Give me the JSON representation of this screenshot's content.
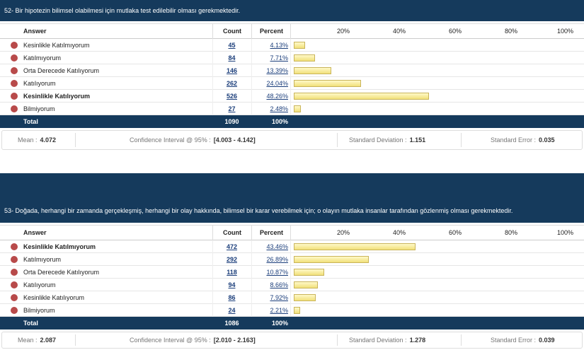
{
  "questions": [
    {
      "title": "52- Bir hipotezin bilimsel olabilmesi için mutlaka test edilebilir olması gerekmektedir.",
      "columns": [
        "Answer",
        "Count",
        "Percent"
      ],
      "scale": {
        "range": [
          0,
          100
        ],
        "ticks": [
          {
            "value": 20,
            "label": "20%"
          },
          {
            "value": 40,
            "label": "40%"
          },
          {
            "value": 60,
            "label": "60%"
          },
          {
            "value": 80,
            "label": "80%"
          },
          {
            "value": 100,
            "label": "100%"
          }
        ]
      },
      "rows": [
        {
          "answer": "Kesinlikle Katılmıyorum",
          "count": 45,
          "percent": 4.13,
          "percent_label": "4.13%"
        },
        {
          "answer": "Katılmıyorum",
          "count": 84,
          "percent": 7.71,
          "percent_label": "7.71%"
        },
        {
          "answer": "Orta Derecede Katılıyorum",
          "count": 146,
          "percent": 13.39,
          "percent_label": "13.39%"
        },
        {
          "answer": "Katılıyorum",
          "count": 262,
          "percent": 24.04,
          "percent_label": "24.04%"
        },
        {
          "answer": "Kesinlikle Katılıyorum",
          "count": 526,
          "percent": 48.26,
          "percent_label": "48.26%",
          "bold": true
        },
        {
          "answer": "Bilmiyorum",
          "count": 27,
          "percent": 2.48,
          "percent_label": "2.48%"
        }
      ],
      "total": {
        "label": "Total",
        "count": 1090,
        "percent": "100%"
      },
      "stats": [
        {
          "label": "Mean :",
          "value": "4.072"
        },
        {
          "label": "Confidence Interval @ 95% :",
          "value": "[4.003 - 4.142]"
        },
        {
          "label": "Standard Deviation :",
          "value": "1.151"
        },
        {
          "label": "Standard Error :",
          "value": "0.035"
        }
      ]
    },
    {
      "title": "53- Doğada, herhangi bir zamanda gerçekleşmiş, herhangi bir olay hakkında, bilimsel bir karar verebilmek için; o olayın mutlaka insanlar tarafından gözlenmiş olması gerekmektedir.",
      "columns": [
        "Answer",
        "Count",
        "Percent"
      ],
      "scale": {
        "range": [
          0,
          100
        ],
        "ticks": [
          {
            "value": 20,
            "label": "20%"
          },
          {
            "value": 40,
            "label": "40%"
          },
          {
            "value": 60,
            "label": "60%"
          },
          {
            "value": 80,
            "label": "80%"
          },
          {
            "value": 100,
            "label": "100%"
          }
        ]
      },
      "rows": [
        {
          "answer": "Kesinlikle Katılmıyorum",
          "count": 472,
          "percent": 43.46,
          "percent_label": "43.46%",
          "bold": true
        },
        {
          "answer": "Katılmıyorum",
          "count": 292,
          "percent": 26.89,
          "percent_label": "26.89%"
        },
        {
          "answer": "Orta Derecede Katılıyorum",
          "count": 118,
          "percent": 10.87,
          "percent_label": "10.87%"
        },
        {
          "answer": "Katılıyorum",
          "count": 94,
          "percent": 8.66,
          "percent_label": "8.66%"
        },
        {
          "answer": "Kesinlikle Katılıyorum",
          "count": 86,
          "percent": 7.92,
          "percent_label": "7.92%"
        },
        {
          "answer": "Bilmiyorum",
          "count": 24,
          "percent": 2.21,
          "percent_label": "2.21%"
        }
      ],
      "total": {
        "label": "Total",
        "count": 1086,
        "percent": "100%"
      },
      "stats": [
        {
          "label": "Mean :",
          "value": "2.087"
        },
        {
          "label": "Confidence Interval @ 95% :",
          "value": "[2.010 - 2.163]"
        },
        {
          "label": "Standard Deviation :",
          "value": "1.278"
        },
        {
          "label": "Standard Error :",
          "value": "0.039"
        }
      ]
    }
  ]
}
